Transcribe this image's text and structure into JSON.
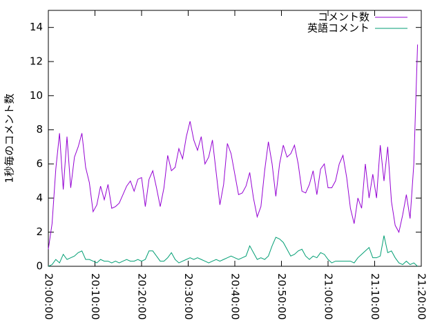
{
  "chart_data": {
    "type": "line",
    "ylabel": "1秒毎のコメント数",
    "x": [
      "20:00:00",
      "20:00:48",
      "20:01:36",
      "20:02:24",
      "20:03:12",
      "20:04:00",
      "20:04:48",
      "20:05:36",
      "20:06:24",
      "20:07:12",
      "20:08:00",
      "20:08:48",
      "20:09:36",
      "20:10:24",
      "20:11:12",
      "20:12:00",
      "20:12:48",
      "20:13:36",
      "20:14:24",
      "20:15:12",
      "20:16:00",
      "20:16:48",
      "20:17:36",
      "20:18:24",
      "20:19:12",
      "20:20:00",
      "20:20:48",
      "20:21:36",
      "20:22:24",
      "20:23:12",
      "20:24:00",
      "20:24:48",
      "20:25:36",
      "20:26:24",
      "20:27:12",
      "20:28:00",
      "20:28:48",
      "20:29:36",
      "20:30:24",
      "20:31:12",
      "20:32:00",
      "20:32:48",
      "20:33:36",
      "20:34:24",
      "20:35:12",
      "20:36:00",
      "20:36:48",
      "20:37:36",
      "20:38:24",
      "20:39:12",
      "20:40:00",
      "20:40:48",
      "20:41:36",
      "20:42:24",
      "20:43:12",
      "20:44:00",
      "20:44:48",
      "20:45:36",
      "20:46:24",
      "20:47:12",
      "20:48:00",
      "20:48:48",
      "20:49:36",
      "20:50:24",
      "20:51:12",
      "20:52:00",
      "20:52:48",
      "20:53:36",
      "20:54:24",
      "20:55:12",
      "20:56:00",
      "20:56:48",
      "20:57:36",
      "20:58:24",
      "20:59:12",
      "21:00:00",
      "21:00:48",
      "21:01:36",
      "21:02:24",
      "21:03:12",
      "21:04:00",
      "21:04:48",
      "21:05:36",
      "21:06:24",
      "21:07:12",
      "21:08:00",
      "21:08:48",
      "21:09:36",
      "21:10:24",
      "21:11:12",
      "21:12:00",
      "21:12:48",
      "21:13:36",
      "21:14:24",
      "21:15:12",
      "21:16:00",
      "21:16:48",
      "21:17:36",
      "21:18:24",
      "21:19:12"
    ],
    "series": [
      {
        "name": "コメント数",
        "color": "#9400d3",
        "values": [
          1.0,
          2.5,
          5.7,
          7.8,
          4.5,
          7.6,
          4.6,
          6.4,
          7.0,
          7.8,
          5.8,
          4.9,
          3.2,
          3.6,
          4.7,
          3.9,
          4.8,
          3.4,
          3.5,
          3.7,
          4.2,
          4.7,
          5.0,
          4.4,
          5.1,
          5.2,
          3.5,
          5.1,
          5.6,
          4.6,
          3.5,
          4.6,
          6.5,
          5.6,
          5.8,
          6.9,
          6.3,
          7.6,
          8.5,
          7.4,
          6.8,
          7.6,
          6.0,
          6.4,
          7.4,
          5.5,
          3.6,
          4.8,
          7.2,
          6.6,
          5.4,
          4.2,
          4.3,
          4.7,
          5.5,
          4.0,
          2.9,
          3.5,
          5.6,
          7.3,
          6.0,
          4.1,
          6.0,
          7.1,
          6.4,
          6.6,
          7.1,
          6.0,
          4.4,
          4.3,
          4.8,
          5.6,
          4.2,
          5.7,
          6.0,
          4.6,
          4.6,
          5.0,
          6.0,
          6.5,
          5.2,
          3.4,
          2.5,
          4.0,
          3.4,
          6.0,
          4.0,
          5.4,
          4.0,
          7.1,
          5.0,
          7.0,
          3.8,
          2.4,
          2.0,
          3.0,
          4.2,
          2.8,
          6.0,
          13.0
        ]
      },
      {
        "name": "英語コメント",
        "color": "#009e73",
        "values": [
          0.0,
          0.1,
          0.4,
          0.2,
          0.7,
          0.4,
          0.5,
          0.6,
          0.8,
          0.9,
          0.4,
          0.4,
          0.3,
          0.2,
          0.4,
          0.3,
          0.3,
          0.2,
          0.3,
          0.2,
          0.3,
          0.4,
          0.3,
          0.3,
          0.4,
          0.3,
          0.4,
          0.9,
          0.9,
          0.6,
          0.3,
          0.3,
          0.5,
          0.8,
          0.4,
          0.2,
          0.3,
          0.4,
          0.5,
          0.4,
          0.5,
          0.4,
          0.3,
          0.2,
          0.3,
          0.4,
          0.3,
          0.4,
          0.5,
          0.6,
          0.5,
          0.4,
          0.5,
          0.6,
          1.2,
          0.8,
          0.4,
          0.5,
          0.4,
          0.6,
          1.2,
          1.7,
          1.6,
          1.4,
          1.0,
          0.6,
          0.7,
          0.9,
          1.0,
          0.6,
          0.4,
          0.6,
          0.5,
          0.8,
          0.7,
          0.4,
          0.2,
          0.3,
          0.3,
          0.3,
          0.3,
          0.3,
          0.2,
          0.5,
          0.7,
          0.9,
          1.1,
          0.5,
          0.5,
          0.6,
          1.8,
          0.8,
          0.9,
          0.5,
          0.2,
          0.1,
          0.3,
          0.1,
          0.2,
          0.0
        ]
      }
    ],
    "xlim": [
      "20:00:00",
      "21:20:00"
    ],
    "xticks": [
      "20:00:00",
      "20:10:00",
      "20:20:00",
      "20:30:00",
      "20:40:00",
      "20:50:00",
      "21:00:00",
      "21:10:00",
      "21:20:00"
    ],
    "ylim": [
      0,
      15
    ],
    "yticks": [
      0,
      2,
      4,
      6,
      8,
      10,
      12,
      14
    ],
    "legend": "top-right"
  }
}
